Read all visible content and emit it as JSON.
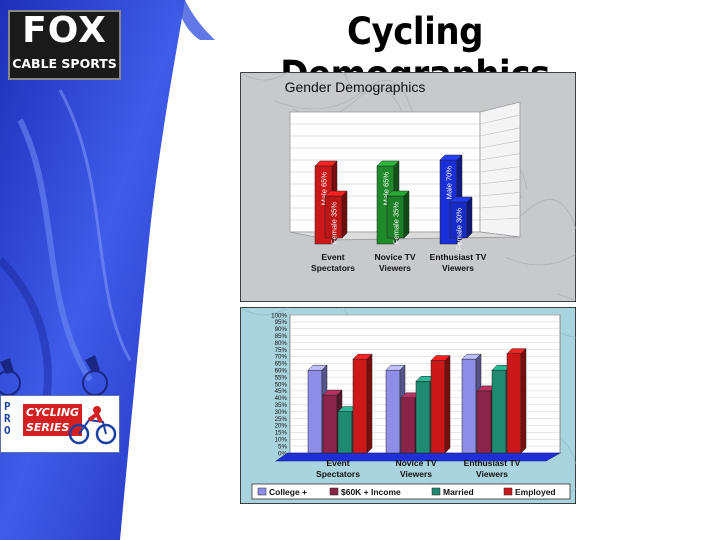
{
  "header": {
    "logo_line1": "FOX",
    "logo_line2": "CABLE SPORTS",
    "title": "Cycling Demographics"
  },
  "side_logo": {
    "pro_letters": [
      "P",
      "R",
      "O"
    ],
    "cycling_line1": "CYCLING",
    "cycling_line2": "SERIES"
  },
  "colors": {
    "background_blue": "#2a3fc8",
    "red": "#cc1818",
    "green": "#1f8a2a",
    "blue": "#1a2fd8",
    "lavender": "#8e8ee8",
    "maroon": "#8a2448",
    "teal": "#1f8a70"
  },
  "chart_data": [
    {
      "type": "bar",
      "title": "Gender Demographics",
      "categories": [
        "Event\nSpectators",
        "Novice TV\nViewers",
        "Enthusiast TV\nViewers"
      ],
      "series": [
        {
          "name": "Male",
          "values": [
            65,
            65,
            70
          ],
          "labels": [
            "Male 65%",
            "Male 65%",
            "Male 70%"
          ]
        },
        {
          "name": "Female",
          "values": [
            35,
            35,
            30
          ],
          "labels": [
            "Female 35%",
            "Female 35%",
            "Female 30%"
          ]
        }
      ],
      "category_colors": [
        "#cc1818",
        "#1f8a2a",
        "#1a2fd8"
      ],
      "ylim": [
        0,
        100
      ],
      "grid": true
    },
    {
      "type": "bar",
      "categories": [
        "Event\nSpectators",
        "Novice TV\nViewers",
        "Enthusiast TV\nViewers"
      ],
      "series": [
        {
          "name": "College +",
          "color": "#8e8ee8",
          "values": [
            60,
            60,
            68
          ]
        },
        {
          "name": "$60K + Income",
          "color": "#8a2448",
          "values": [
            42,
            40,
            45
          ]
        },
        {
          "name": "Married",
          "color": "#1f8a70",
          "values": [
            30,
            52,
            60
          ]
        },
        {
          "name": "Employed",
          "color": "#cc1818",
          "values": [
            68,
            67,
            72
          ]
        }
      ],
      "yticks": [
        "100%",
        "95%",
        "90%",
        "85%",
        "80%",
        "75%",
        "70%",
        "65%",
        "60%",
        "55%",
        "50%",
        "45%",
        "40%",
        "35%",
        "30%",
        "25%",
        "20%",
        "15%",
        "10%",
        "5%",
        "0%"
      ],
      "ylim": [
        0,
        100
      ],
      "legend_position": "bottom",
      "grid": true
    }
  ]
}
